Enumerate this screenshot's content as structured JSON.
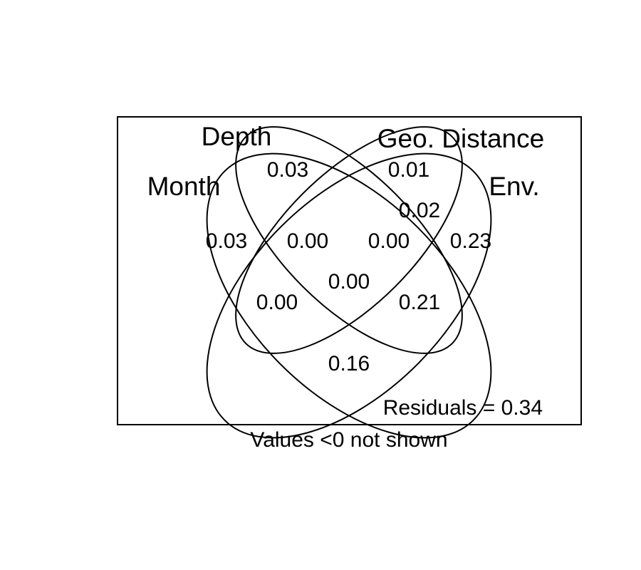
{
  "colors": {
    "background": "#ffffff",
    "stroke": "#000000",
    "text": "#000000"
  },
  "sets": {
    "depth": "Depth",
    "geo_distance": "Geo. Distance",
    "month": "Month",
    "env": "Env."
  },
  "regions": {
    "depth_only": "0.03",
    "geo_only": "0.01",
    "month_only": "0.03",
    "env_only": "0.23",
    "depth_geo": "0.02",
    "month_depth": "0.00",
    "geo_env": "0.00",
    "month_depth_geo": "0.00",
    "all_four": "0.00",
    "depth_geo_env": "0.21",
    "month_env": "0.16"
  },
  "residuals": "Residuals = 0.34",
  "footnote": "Values <0 not shown"
}
